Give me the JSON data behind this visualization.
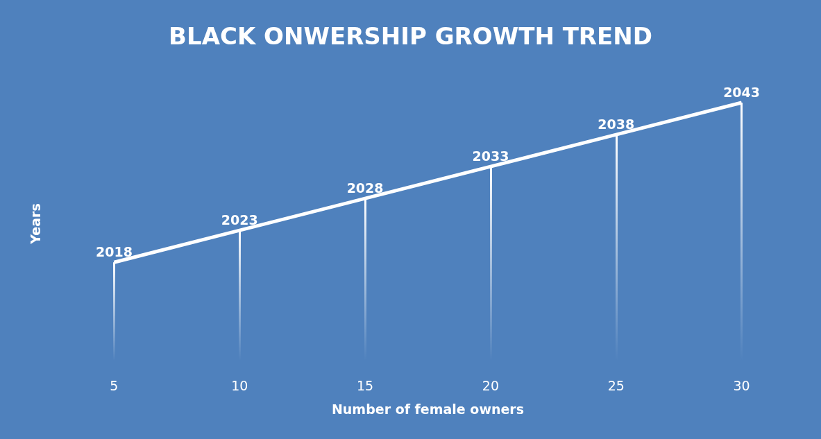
{
  "chart_data": {
    "type": "line",
    "title": "BLACK ONWERSHIP GROWTH TREND",
    "xlabel": "Number of female owners",
    "ylabel": "Years",
    "categories": [
      "5",
      "10",
      "15",
      "20",
      "25",
      "30"
    ],
    "series": [
      {
        "color": "#ffffff",
        "values": [
          2018,
          2023,
          2028,
          2033,
          2038,
          2043
        ]
      }
    ],
    "data_labels": true,
    "grid": "x",
    "tick_labels": "x"
  }
}
